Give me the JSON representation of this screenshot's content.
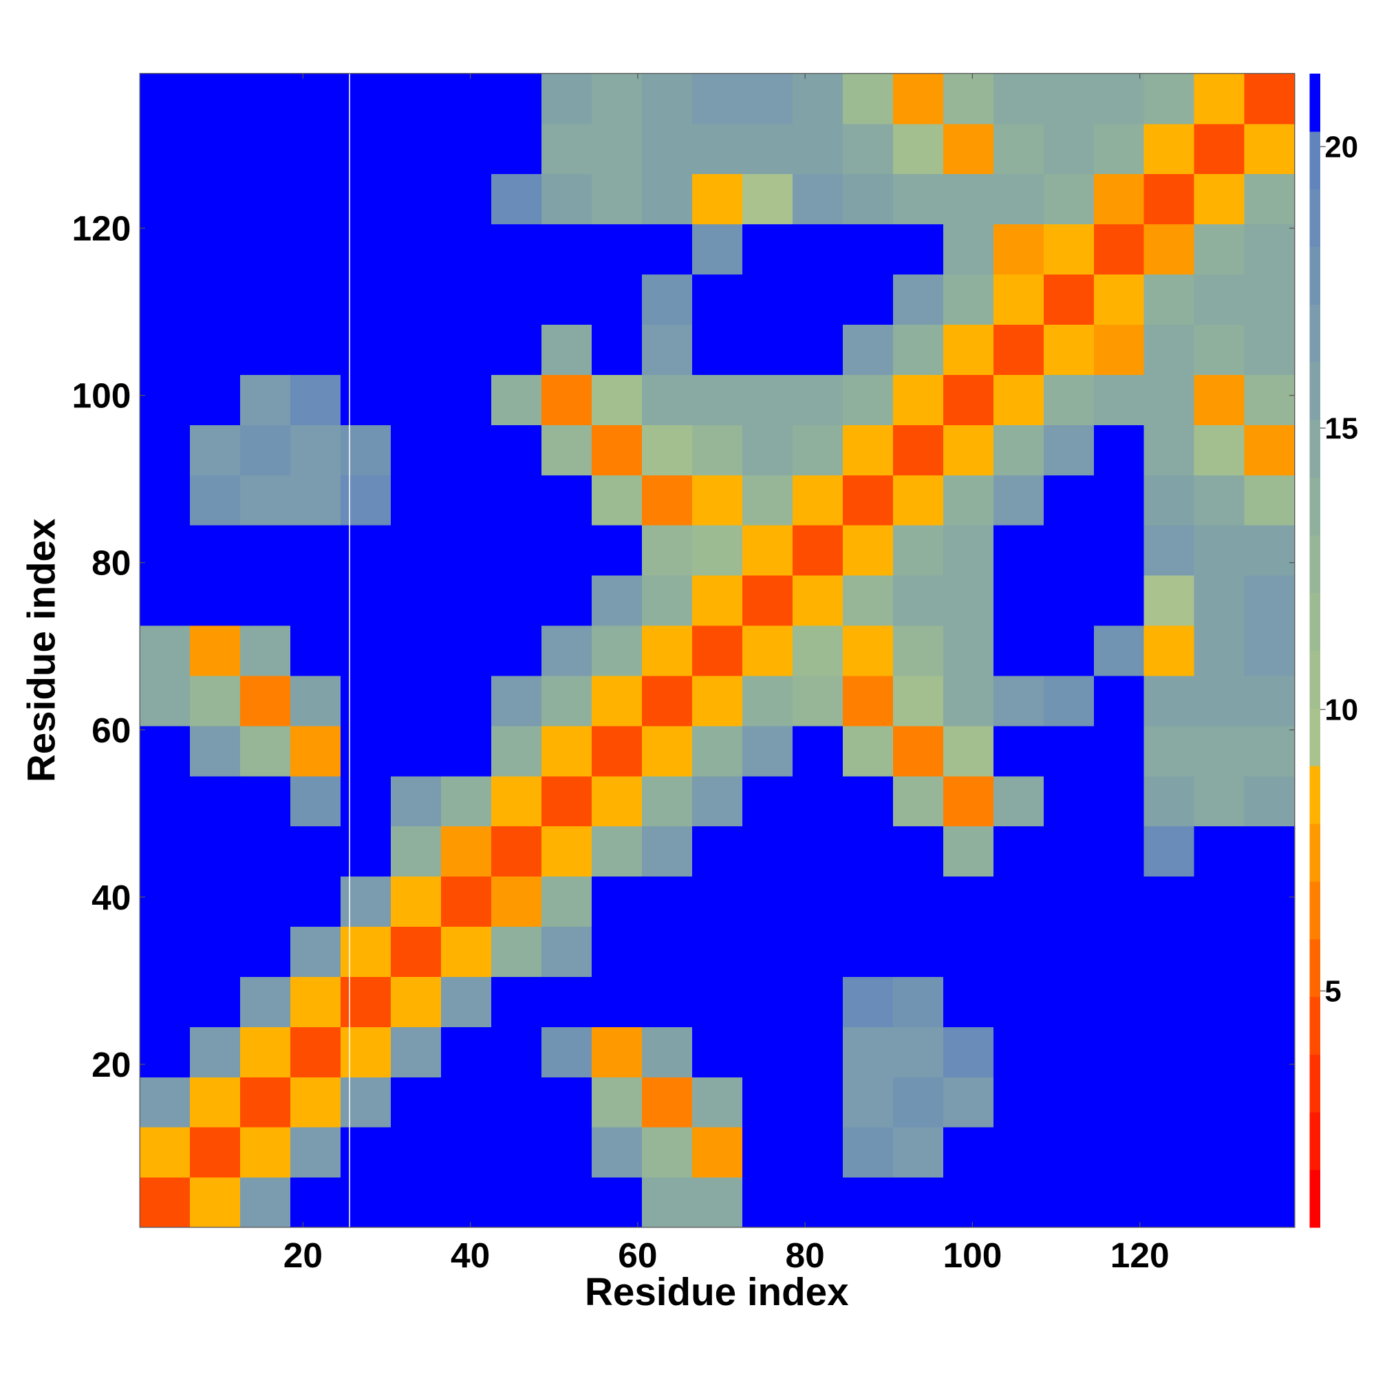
{
  "chart_data": {
    "type": "heatmap",
    "xlabel": "Residue index",
    "ylabel": "Residue index",
    "x": [
      3.5,
      9.5,
      15.5,
      21.5,
      27.5,
      33.5,
      39.5,
      45.5,
      51.5,
      57.5,
      63.5,
      69.5,
      75.5,
      81.5,
      87.5,
      93.5,
      99.5,
      105.5,
      111.5,
      117.5,
      123.5,
      129.5,
      135.5
    ],
    "y": [
      3.5,
      9.5,
      15.5,
      21.5,
      27.5,
      33.5,
      39.5,
      45.5,
      51.5,
      57.5,
      63.5,
      69.5,
      75.5,
      81.5,
      87.5,
      93.5,
      99.5,
      105.5,
      111.5,
      117.5,
      123.5,
      129.5,
      135.5
    ],
    "z": [
      [
        4,
        9,
        17,
        21,
        21,
        21,
        21,
        21,
        21,
        21,
        15,
        15,
        21,
        21,
        21,
        21,
        21,
        21,
        21,
        21,
        21,
        21,
        21
      ],
      [
        9,
        4,
        9,
        17,
        21,
        21,
        21,
        21,
        21,
        17,
        13,
        7,
        21,
        21,
        18,
        17,
        21,
        21,
        21,
        21,
        21,
        21,
        21
      ],
      [
        17,
        9,
        4,
        9,
        17,
        21,
        21,
        21,
        21,
        13,
        6,
        15,
        21,
        21,
        17,
        18,
        17,
        21,
        21,
        21,
        21,
        21,
        21
      ],
      [
        21,
        17,
        9,
        4,
        9,
        17,
        21,
        21,
        18,
        7,
        16,
        21,
        21,
        21,
        17,
        17,
        19,
        21,
        21,
        21,
        21,
        21,
        21
      ],
      [
        21,
        21,
        17,
        9,
        4,
        9,
        17,
        21,
        21,
        21,
        21,
        21,
        21,
        21,
        19,
        18,
        21,
        21,
        21,
        21,
        21,
        21,
        21
      ],
      [
        21,
        21,
        21,
        17,
        9,
        4,
        9,
        14,
        17,
        21,
        21,
        21,
        21,
        21,
        21,
        21,
        21,
        21,
        21,
        21,
        21,
        21,
        21
      ],
      [
        21,
        21,
        21,
        21,
        17,
        9,
        4,
        7,
        14,
        21,
        21,
        21,
        21,
        21,
        21,
        21,
        21,
        21,
        21,
        21,
        21,
        21,
        21
      ],
      [
        21,
        21,
        21,
        21,
        21,
        14,
        7,
        4,
        9,
        14,
        17,
        21,
        21,
        21,
        21,
        21,
        14,
        21,
        21,
        21,
        19,
        21,
        21
      ],
      [
        21,
        21,
        21,
        18,
        21,
        17,
        14,
        9,
        4,
        9,
        14,
        17,
        21,
        21,
        21,
        13,
        6,
        15,
        21,
        21,
        16,
        15,
        16
      ],
      [
        21,
        17,
        13,
        7,
        21,
        21,
        21,
        14,
        9,
        4,
        9,
        14,
        17,
        21,
        12,
        6,
        11,
        21,
        21,
        21,
        15,
        15,
        15
      ],
      [
        15,
        13,
        6,
        16,
        21,
        21,
        21,
        17,
        14,
        9,
        4,
        9,
        14,
        13,
        6,
        11,
        15,
        17,
        18,
        21,
        16,
        16,
        16
      ],
      [
        15,
        7,
        15,
        21,
        21,
        21,
        21,
        21,
        17,
        14,
        9,
        4,
        9,
        12,
        9,
        13,
        15,
        21,
        21,
        18,
        8,
        16,
        17
      ],
      [
        21,
        21,
        21,
        21,
        21,
        21,
        21,
        21,
        21,
        17,
        14,
        9,
        4,
        9,
        13,
        15,
        15,
        21,
        21,
        21,
        10,
        16,
        17
      ],
      [
        21,
        21,
        21,
        21,
        21,
        21,
        21,
        21,
        21,
        21,
        13,
        12,
        9,
        4,
        9,
        14,
        15,
        21,
        21,
        21,
        17,
        16,
        16
      ],
      [
        21,
        18,
        17,
        17,
        19,
        21,
        21,
        21,
        21,
        12,
        6,
        9,
        13,
        9,
        4,
        9,
        14,
        17,
        21,
        21,
        16,
        15,
        12
      ],
      [
        21,
        17,
        18,
        17,
        18,
        21,
        21,
        21,
        13,
        6,
        11,
        13,
        15,
        14,
        9,
        4,
        9,
        14,
        17,
        21,
        15,
        11,
        7
      ],
      [
        21,
        21,
        17,
        19,
        21,
        21,
        21,
        14,
        6,
        11,
        15,
        15,
        15,
        15,
        14,
        9,
        4,
        9,
        14,
        15,
        15,
        7,
        13
      ],
      [
        21,
        21,
        21,
        21,
        21,
        21,
        21,
        21,
        15,
        21,
        17,
        21,
        21,
        21,
        17,
        14,
        9,
        4,
        9,
        7,
        15,
        14,
        15
      ],
      [
        21,
        21,
        21,
        21,
        21,
        21,
        21,
        21,
        21,
        21,
        18,
        21,
        21,
        21,
        21,
        17,
        14,
        9,
        4,
        9,
        14,
        15,
        15
      ],
      [
        21,
        21,
        21,
        21,
        21,
        21,
        21,
        21,
        21,
        21,
        21,
        18,
        21,
        21,
        21,
        21,
        15,
        7,
        9,
        4,
        7,
        14,
        15
      ],
      [
        21,
        21,
        21,
        21,
        21,
        21,
        21,
        19,
        16,
        15,
        16,
        8,
        10,
        17,
        16,
        15,
        15,
        15,
        14,
        7,
        4,
        9,
        14
      ],
      [
        21,
        21,
        21,
        21,
        21,
        21,
        21,
        21,
        15,
        15,
        16,
        16,
        16,
        16,
        15,
        11,
        7,
        14,
        15,
        14,
        9,
        4,
        9
      ],
      [
        21,
        21,
        21,
        21,
        21,
        21,
        21,
        21,
        16,
        15,
        16,
        17,
        17,
        16,
        12,
        7,
        13,
        15,
        15,
        15,
        14,
        9,
        4
      ]
    ],
    "xlim": [
      0.5,
      138.5
    ],
    "ylim": [
      0.5,
      138.5
    ],
    "xticks": [
      20,
      40,
      60,
      80,
      100,
      120
    ],
    "yticks": [
      20,
      40,
      60,
      80,
      100,
      120
    ],
    "zlim": [
      0.8,
      21.3
    ],
    "zticks": [
      5,
      10,
      15,
      20
    ],
    "colors": [
      "#ff0000",
      "#ff1a00",
      "#ff3300",
      "#ff4d00",
      "#ff6600",
      "#ff8000",
      "#ff9900",
      "#ffb300",
      "#a9c28e",
      "#a3bf8f",
      "#9dbb92",
      "#96b697",
      "#8fb09c",
      "#88aaa2",
      "#81a3a8",
      "#7a9cae",
      "#7294b3",
      "#6a8cb8",
      "#6284bd",
      "#0000ff"
    ]
  }
}
